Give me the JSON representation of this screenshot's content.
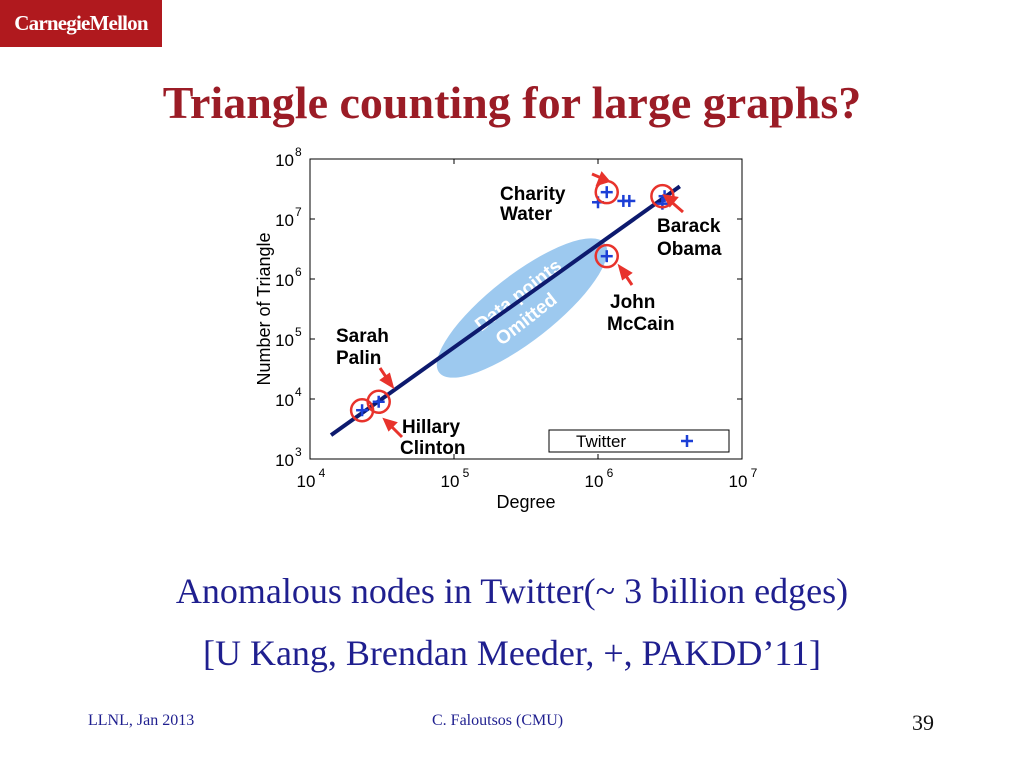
{
  "header": {
    "logo_text": "CarnegieMellon"
  },
  "slide": {
    "title": "Triangle counting for large graphs?",
    "caption_line1": "Anomalous nodes in Twitter(~ 3 billion edges)",
    "caption_line2": "[U Kang, Brendan Meeder, +, PAKDD’11]"
  },
  "footer": {
    "left": "LLNL, Jan 2013",
    "center": "C. Faloutsos (CMU)",
    "page": "39"
  },
  "chart_data": {
    "type": "scatter",
    "xlabel": "Degree",
    "ylabel": "Number of Triangle",
    "xscale": "log",
    "yscale": "log",
    "xlim": [
      10000,
      10000000
    ],
    "ylim": [
      1000,
      100000000
    ],
    "x_ticks": [
      {
        "value": 10000,
        "base": "10",
        "exp": "4"
      },
      {
        "value": 100000,
        "base": "10",
        "exp": "5"
      },
      {
        "value": 1000000,
        "base": "10",
        "exp": "6"
      },
      {
        "value": 10000000,
        "base": "10",
        "exp": "7"
      }
    ],
    "y_ticks": [
      {
        "value": 1000,
        "base": "10",
        "exp": "3"
      },
      {
        "value": 10000,
        "base": "10",
        "exp": "4"
      },
      {
        "value": 100000,
        "base": "10",
        "exp": "5"
      },
      {
        "value": 1000000,
        "base": "10",
        "exp": "6"
      },
      {
        "value": 10000000,
        "base": "10",
        "exp": "7"
      },
      {
        "value": 100000000,
        "base": "10",
        "exp": "8"
      }
    ],
    "legend": {
      "label": "Twitter",
      "position": "bottom-right"
    },
    "points": [
      {
        "x": 23000,
        "y": 6500
      },
      {
        "x": 30000,
        "y": 9000
      },
      {
        "x": 1000000,
        "y": 19000000
      },
      {
        "x": 1150000,
        "y": 28000000
      },
      {
        "x": 1500000,
        "y": 20000000
      },
      {
        "x": 1650000,
        "y": 20000000
      },
      {
        "x": 2800000,
        "y": 18000000
      },
      {
        "x": 2900000,
        "y": 24000000
      },
      {
        "x": 1150000,
        "y": 2400000
      }
    ],
    "circled_points": [
      {
        "x": 23000,
        "y": 6500
      },
      {
        "x": 30000,
        "y": 9000
      },
      {
        "x": 1150000,
        "y": 28000000
      },
      {
        "x": 2800000,
        "y": 24000000
      },
      {
        "x": 1150000,
        "y": 2400000
      }
    ],
    "fit_line": {
      "x1": 14000,
      "y1": 2500,
      "x2": 3700000,
      "y2": 35000000
    },
    "omitted_region": {
      "label_line1": "Data points",
      "label_line2": "Omitted"
    },
    "annotations": [
      {
        "line1": "Charity",
        "line2": "Water"
      },
      {
        "line1": "Barack",
        "line2": "Obama"
      },
      {
        "line1": "John",
        "line2": "McCain"
      },
      {
        "line1": "Sarah",
        "line2": "Palin"
      },
      {
        "line1": "Hillary",
        "line2": "Clinton"
      }
    ]
  }
}
